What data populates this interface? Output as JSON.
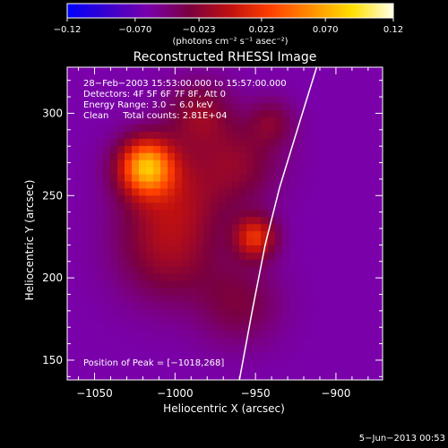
{
  "chart_data": {
    "type": "heatmap",
    "title": "Reconstructed RHESSI Image",
    "xlabel": "Heliocentric X (arcsec)",
    "ylabel": "Heliocentric Y (arcsec)",
    "xlim": [
      -1067,
      -871
    ],
    "ylim": [
      138,
      328
    ],
    "xticks": [
      -1050,
      -1000,
      -950,
      -900
    ],
    "yticks": [
      150,
      200,
      250,
      300
    ],
    "xtick_labels": [
      "−1050",
      "−1000",
      "−950",
      "−900"
    ],
    "ytick_labels": [
      "150",
      "200",
      "250",
      "300"
    ],
    "colorbar": {
      "range": [
        -0.12,
        0.12
      ],
      "ticks": [
        -0.12,
        -0.07,
        -0.023,
        0.023,
        0.07,
        0.12
      ],
      "tick_labels": [
        "−0.12",
        "−0.070",
        "−0.023",
        "0.023",
        "0.070",
        "0.12"
      ],
      "unit_label": "(photons cm⁻² s⁻¹ asec⁻²)",
      "colors": [
        "#0000ff",
        "#3a00cc",
        "#7a00aa",
        "#7a0040",
        "#c01010",
        "#ff4000",
        "#ff9000",
        "#ffe000",
        "#ffffe8"
      ]
    },
    "info_lines": [
      "28−Feb−2003 15:53:00.000 to 15:57:00.000",
      "Detectors: 4F 5F 6F 7F 8F, Att 0",
      "Energy Range: 3.0 − 6.0 keV",
      "Clean     Total counts: 2.81E+04"
    ],
    "peak_label": "Position of Peak = [−1018,268]",
    "peak": [
      -1018,
      268
    ],
    "limb_curve": [
      [
        -960,
        138
      ],
      [
        -952,
        180
      ],
      [
        -944,
        220
      ],
      [
        -935,
        255
      ],
      [
        -924,
        290
      ],
      [
        -912,
        328
      ]
    ],
    "sources": [
      {
        "x": -1018,
        "y": 268,
        "sigma": 12,
        "amp": 0.12
      },
      {
        "x": -1000,
        "y": 250,
        "sigma": 22,
        "amp": 0.04
      },
      {
        "x": -950,
        "y": 225,
        "sigma": 9,
        "amp": 0.075
      },
      {
        "x": -960,
        "y": 270,
        "sigma": 18,
        "amp": 0.035
      },
      {
        "x": -1005,
        "y": 215,
        "sigma": 22,
        "amp": 0.038
      },
      {
        "x": -960,
        "y": 185,
        "sigma": 18,
        "amp": 0.03
      },
      {
        "x": -985,
        "y": 300,
        "sigma": 14,
        "amp": 0.04
      },
      {
        "x": -940,
        "y": 295,
        "sigma": 10,
        "amp": 0.03
      }
    ],
    "background": -0.06,
    "timestamp": "5−Jun−2013 00:53"
  }
}
